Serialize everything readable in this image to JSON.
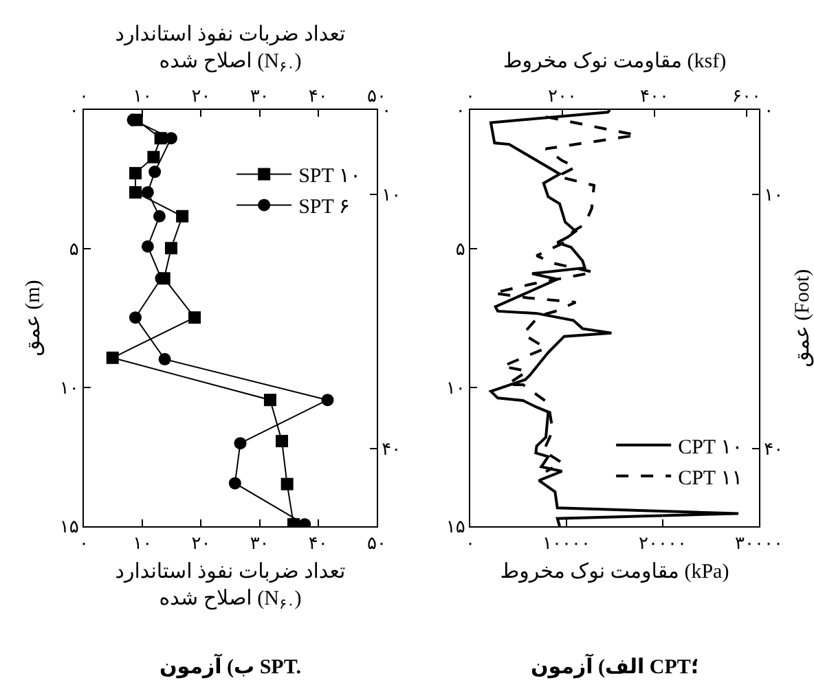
{
  "chart_data": [
    {
      "type": "line",
      "title": "الف) آزمون CPT؛",
      "xlabel": "مقاومت نوک مخروط (kPa)",
      "x2label": "مقاومت نوک مخروط (ksf)",
      "y2label": "عمق (Foot)",
      "xlim": [
        0,
        30000
      ],
      "xticks": [
        {
          "value": 0,
          "label": "۰"
        },
        {
          "value": 10000,
          "label": "۱۰۰۰۰"
        },
        {
          "value": 20000,
          "label": "۲۰۰۰۰"
        },
        {
          "value": 30000,
          "label": "۳۰۰۰۰"
        }
      ],
      "x2lim": [
        0,
        627
      ],
      "x2ticks": [
        {
          "value": 0,
          "label": "۰"
        },
        {
          "value": 200,
          "label": "۲۰۰"
        },
        {
          "value": 400,
          "label": "۴۰۰"
        },
        {
          "value": 600,
          "label": "۶۰۰"
        }
      ],
      "ylim": [
        15,
        0
      ],
      "yticks": [
        {
          "value": 0,
          "label": "۰"
        },
        {
          "value": 5,
          "label": "۵"
        },
        {
          "value": 10,
          "label": "۱۰"
        },
        {
          "value": 15,
          "label": "۱۵"
        }
      ],
      "y2lim": [
        49.2,
        0
      ],
      "y2ticks": [
        {
          "value": 0,
          "label": "۰"
        },
        {
          "value": 10,
          "label": "۱۰"
        },
        {
          "value": 40,
          "label": "۴۰"
        }
      ],
      "legend": "bottom right",
      "series": [
        {
          "name": "CPT ۱۰",
          "color": "#000000",
          "marker": "none",
          "line_style": "solid",
          "x": [
            14500,
            14300,
            2140,
            2520,
            4050,
            9290,
            7620,
            8100,
            9290,
            9860,
            10950,
            10140,
            9050,
            10480,
            11670,
            11900,
            6430,
            9050,
            2620,
            2860,
            6900,
            10710,
            11670,
            14670,
            9760,
            8100,
            6190,
            5710,
            2140,
            2860,
            5480,
            6900,
            8100,
            7860,
            6900,
            6810,
            8100,
            7380,
            9520,
            7140,
            8810,
            9050,
            27860,
            9050,
            9290
          ],
          "values": [
            0,
            0.08,
            0.46,
            1.19,
            1.24,
            2.31,
            2.64,
            3.13,
            3.38,
            4.04,
            4.37,
            4.58,
            4.78,
            4.95,
            5.44,
            5.69,
            5.9,
            6.1,
            7.09,
            7.25,
            7.33,
            7.58,
            7.88,
            8.04,
            8.16,
            8.74,
            9.56,
            9.72,
            10.14,
            10.38,
            10.47,
            10.71,
            10.88,
            11.79,
            12.11,
            12.36,
            12.49,
            12.86,
            13.02,
            13.35,
            13.76,
            14.34,
            14.54,
            14.72,
            15
          ]
        },
        {
          "name": "CPT ۱۱",
          "color": "#000000",
          "marker": "none",
          "line_style": "dashed",
          "x": [
            7860,
            17290,
            7860,
            9520,
            10950,
            9050,
            12860,
            12620,
            11900,
            10710,
            9760,
            6900,
            8570,
            12860,
            6430,
            2380,
            5950,
            10950,
            8810,
            7140,
            5480,
            7860,
            3330,
            5950,
            3810,
            5480,
            8100,
            8570,
            7620,
            9520,
            7860
          ],
          "values": [
            0.25,
            0.91,
            1.4,
            1.82,
            2.06,
            2.39,
            2.72,
            3.55,
            4.12,
            4.37,
            4.78,
            5.25,
            5.52,
            5.85,
            6.27,
            6.6,
            6.77,
            6.93,
            7.26,
            7.42,
            8.08,
            8.58,
            9.24,
            9.41,
            9.9,
            9.9,
            10.56,
            11.55,
            12.29,
            12.71,
            13.03
          ]
        }
      ]
    },
    {
      "type": "line",
      "title": "ب) آزمون SPT.",
      "xlabel": "تعداد ضربات نفوذ استاندارد\nاصلاح شده (N$_{۶۰}$)",
      "x2label": "تعداد ضربات نفوذ استاندارد\nاصلاح شده (N$_{۶۰}$)",
      "ylabel": "عمق (m)",
      "xlim": [
        0,
        50
      ],
      "xticks": [
        {
          "value": 0,
          "label": "۰"
        },
        {
          "value": 10,
          "label": "۱۰"
        },
        {
          "value": 20,
          "label": "۲۰"
        },
        {
          "value": 30,
          "label": "۳۰"
        },
        {
          "value": 40,
          "label": "۴۰"
        },
        {
          "value": 50,
          "label": "۵۰"
        }
      ],
      "x2lim": [
        0,
        50
      ],
      "x2ticks": [
        {
          "value": 0,
          "label": "۰"
        },
        {
          "value": 10,
          "label": "۱۰"
        },
        {
          "value": 20,
          "label": "۲۰"
        },
        {
          "value": 30,
          "label": "۳۰"
        },
        {
          "value": 40,
          "label": "۴۰"
        },
        {
          "value": 50,
          "label": "۵۰"
        }
      ],
      "ylim": [
        15,
        0
      ],
      "yticks": [
        {
          "value": 0,
          "label": "۰"
        },
        {
          "value": 5,
          "label": "۵"
        },
        {
          "value": 10,
          "label": "۱۰"
        },
        {
          "value": 15,
          "label": "۱۵"
        }
      ],
      "y2lim": [
        49.2,
        0
      ],
      "y2ticks": [
        {
          "value": 0,
          "label": "۰"
        },
        {
          "value": 10,
          "label": "۱۰"
        },
        {
          "value": 40,
          "label": "۴۰"
        }
      ],
      "legend": "top right",
      "series": [
        {
          "name": "SPT ۱۰",
          "color": "#000000",
          "marker": "square",
          "line_style": "solid",
          "x": [
            9.0,
            13.1,
            11.9,
            8.8,
            8.8,
            16.8,
            14.9,
            13.7,
            18.9,
            4.9,
            31.8,
            33.8,
            34.7,
            35.8
          ],
          "values": [
            0.36,
            1.02,
            1.7,
            2.28,
            2.97,
            3.83,
            4.98,
            6.07,
            7.48,
            8.93,
            10.45,
            11.93,
            13.48,
            14.93
          ]
        },
        {
          "name": "SPT ۶",
          "color": "#000000",
          "marker": "circle",
          "line_style": "solid",
          "x": [
            8.4,
            14.9,
            12.1,
            10.9,
            12.9,
            10.9,
            13.2,
            8.8,
            13.8,
            41.6,
            26.7,
            25.8,
            37.7
          ],
          "values": [
            0.36,
            1.02,
            2.23,
            2.97,
            3.83,
            4.92,
            6.07,
            7.48,
            8.98,
            10.45,
            12.01,
            13.45,
            14.93
          ]
        }
      ]
    }
  ]
}
